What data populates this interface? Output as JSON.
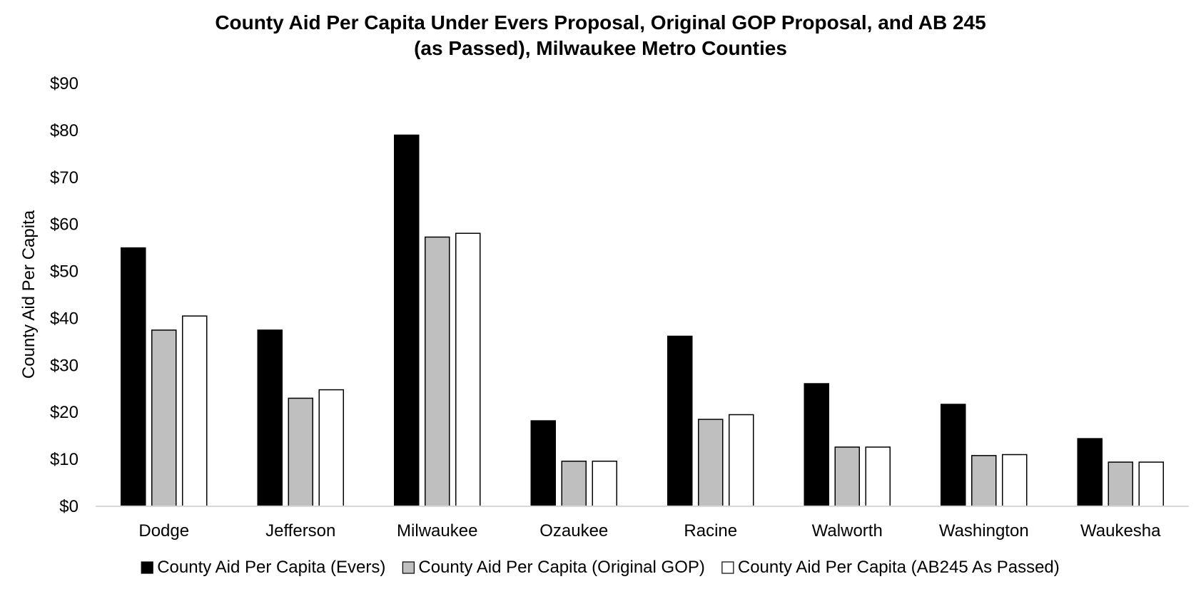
{
  "chart_data": {
    "type": "bar",
    "title": "County Aid Per Capita Under Evers Proposal, Original GOP Proposal, and AB 245\n(as Passed), Milwaukee Metro Counties",
    "xlabel": "",
    "ylabel": "County Aid Per Capita",
    "ylim": [
      0,
      90
    ],
    "yticks": [
      "$0",
      "$10",
      "$20",
      "$30",
      "$40",
      "$50",
      "$60",
      "$70",
      "$80",
      "$90"
    ],
    "grid": false,
    "legend_position": "bottom",
    "categories": [
      "Dodge",
      "Jefferson",
      "Milwaukee",
      "Ozaukee",
      "Racine",
      "Walworth",
      "Washington",
      "Waukesha"
    ],
    "series": [
      {
        "name": "County Aid Per Capita (Evers)",
        "color": "#000000",
        "values": [
          55.0,
          37.5,
          79.0,
          18.2,
          36.2,
          26.1,
          21.7,
          14.4
        ]
      },
      {
        "name": "County Aid Per Capita (Original GOP)",
        "color": "#bfbfbf",
        "values": [
          37.5,
          23.0,
          57.3,
          9.6,
          18.5,
          12.6,
          10.8,
          9.4
        ]
      },
      {
        "name": "County Aid Per Capita (AB245 As Passed)",
        "color": "#ffffff",
        "values": [
          40.5,
          24.8,
          58.1,
          9.6,
          19.5,
          12.6,
          11.0,
          9.4
        ]
      }
    ]
  }
}
